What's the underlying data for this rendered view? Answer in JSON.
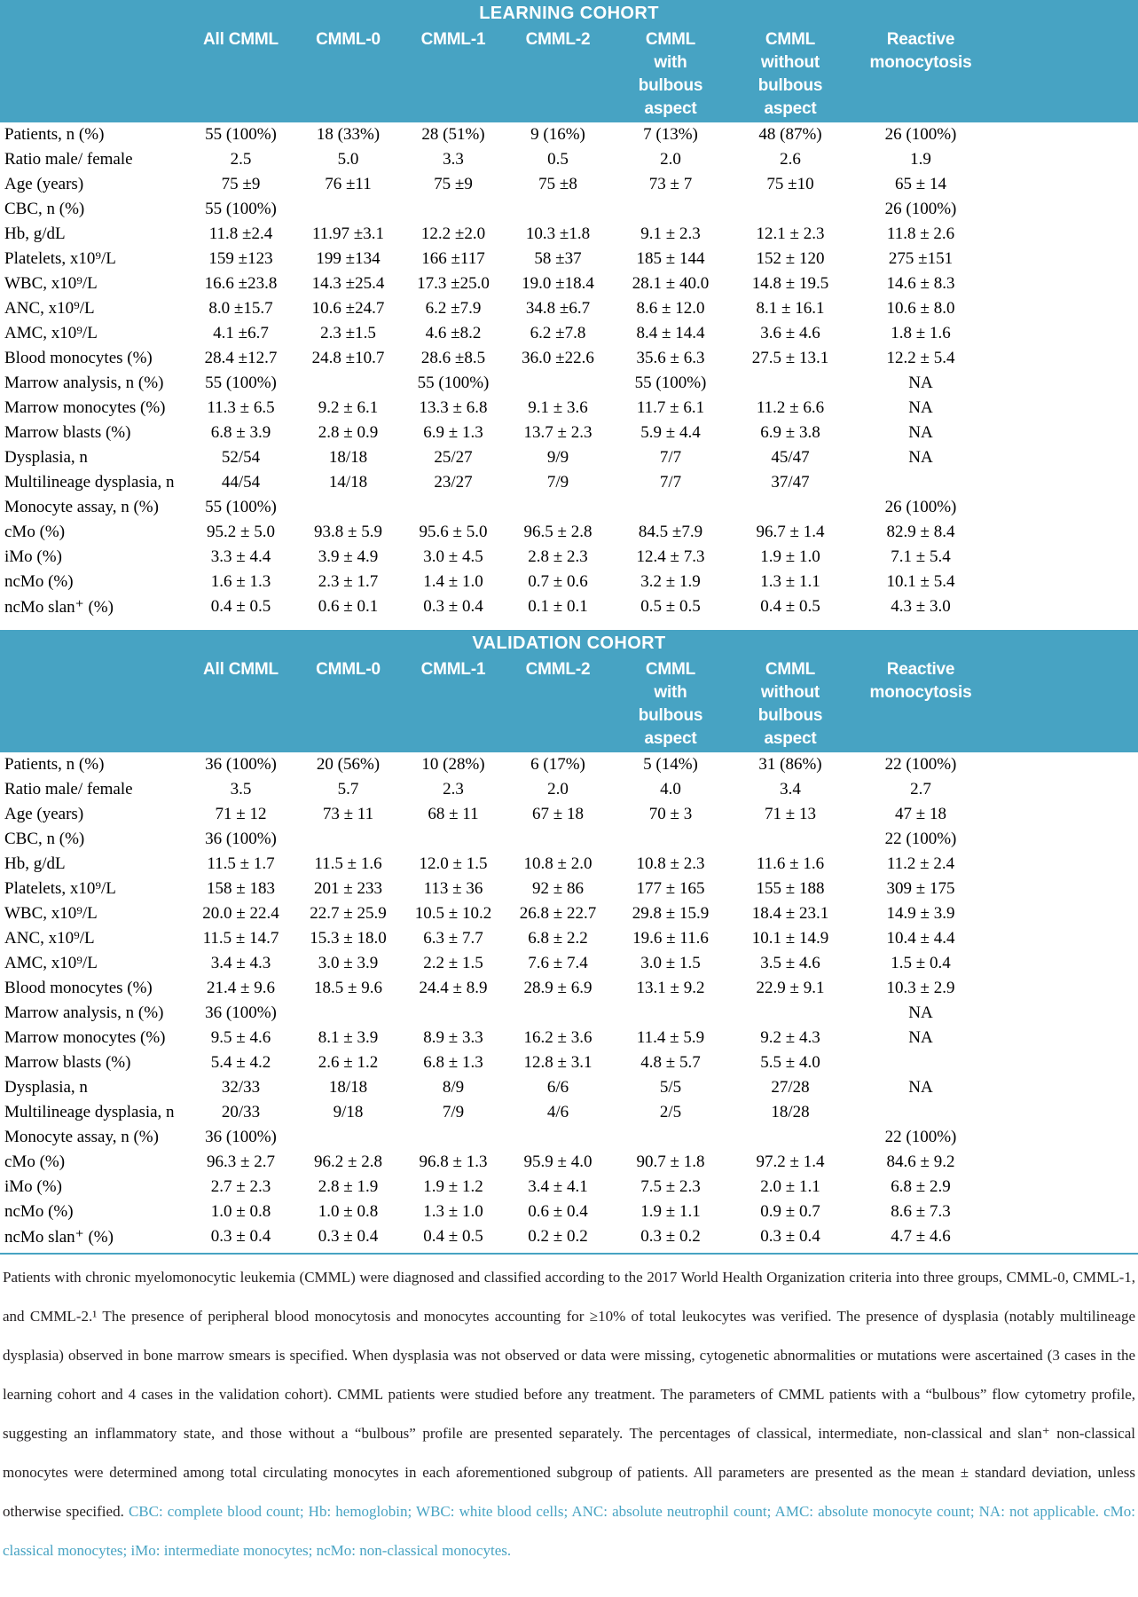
{
  "colors": {
    "accent": "#47a3c3",
    "header_text": "#ffffff",
    "body_text": "#000000",
    "footnote_text": "#231f20"
  },
  "columns": [
    "All CMML",
    "CMML-0",
    "CMML-1",
    "CMML-2",
    "CMML\nwith\nbulbous\naspect",
    "CMML\nwithout\nbulbous\naspect",
    "Reactive\nmonocytosis"
  ],
  "sections": [
    {
      "title": "LEARNING COHORT",
      "rows": [
        {
          "label": "Patients, n (%)",
          "values": [
            "55 (100%)",
            "18 (33%)",
            "28 (51%)",
            "9 (16%)",
            "7 (13%)",
            "48 (87%)",
            "26 (100%)"
          ]
        },
        {
          "label": "Ratio male/ female",
          "values": [
            "2.5",
            "5.0",
            "3.3",
            "0.5",
            "2.0",
            "2.6",
            "1.9"
          ]
        },
        {
          "label": "Age (years)",
          "values": [
            "75 ±9",
            "76 ±11",
            "75 ±9",
            "75 ±8",
            "73 ± 7",
            "75 ±10",
            "65 ± 14"
          ]
        },
        {
          "label": "CBC, n (%)",
          "values": [
            "55 (100%)",
            "",
            "",
            "",
            "",
            "",
            "26 (100%)"
          ]
        },
        {
          "label": "Hb, g/dL",
          "values": [
            "11.8 ±2.4",
            "11.97 ±3.1",
            "12.2 ±2.0",
            "10.3 ±1.8",
            "9.1 ± 2.3",
            "12.1 ± 2.3",
            "11.8 ± 2.6"
          ]
        },
        {
          "label": "Platelets, x10⁹/L",
          "values": [
            "159 ±123",
            "199 ±134",
            "166 ±117",
            "58 ±37",
            "185 ± 144",
            "152 ± 120",
            "275 ±151"
          ]
        },
        {
          "label": "WBC, x10⁹/L",
          "values": [
            "16.6 ±23.8",
            "14.3 ±25.4",
            "17.3 ±25.0",
            "19.0 ±18.4",
            "28.1 ± 40.0",
            "14.8 ± 19.5",
            "14.6 ± 8.3"
          ]
        },
        {
          "label": "ANC, x10⁹/L",
          "values": [
            "8.0 ±15.7",
            "10.6 ±24.7",
            "6.2 ±7.9",
            "34.8 ±6.7",
            "8.6 ± 12.0",
            "8.1 ± 16.1",
            "10.6 ± 8.0"
          ]
        },
        {
          "label": "AMC, x10⁹/L",
          "values": [
            "4.1 ±6.7",
            "2.3 ±1.5",
            "4.6 ±8.2",
            "6.2 ±7.8",
            "8.4 ± 14.4",
            "3.6 ± 4.6",
            "1.8 ± 1.6"
          ]
        },
        {
          "label": "Blood monocytes (%)",
          "values": [
            "28.4 ±12.7",
            "24.8 ±10.7",
            "28.6 ±8.5",
            "36.0 ±22.6",
            "35.6 ± 6.3",
            "27.5 ± 13.1",
            "12.2 ± 5.4"
          ]
        },
        {
          "label": "Marrow analysis, n (%)",
          "values": [
            "55 (100%)",
            "",
            "55 (100%)",
            "",
            "55 (100%)",
            "",
            "NA"
          ]
        },
        {
          "label": "Marrow monocytes (%)",
          "values": [
            "11.3 ± 6.5",
            "9.2 ± 6.1",
            "13.3 ± 6.8",
            "9.1 ± 3.6",
            "11.7 ± 6.1",
            "11.2 ± 6.6",
            "NA"
          ]
        },
        {
          "label": "Marrow blasts (%)",
          "values": [
            "6.8 ± 3.9",
            "2.8 ± 0.9",
            "6.9 ± 1.3",
            "13.7 ± 2.3",
            "5.9 ± 4.4",
            "6.9 ± 3.8",
            "NA"
          ]
        },
        {
          "label": "Dysplasia, n",
          "values": [
            "52/54",
            "18/18",
            "25/27",
            "9/9",
            "7/7",
            "45/47",
            "NA"
          ]
        },
        {
          "label": "Multilineage dysplasia, n",
          "values": [
            "44/54",
            "14/18",
            "23/27",
            "7/9",
            "7/7",
            "37/47",
            ""
          ]
        },
        {
          "label": "Monocyte assay, n (%)",
          "values": [
            "55 (100%)",
            "",
            "",
            "",
            "",
            "",
            "26 (100%)"
          ]
        },
        {
          "label": "cMo (%)",
          "values": [
            "95.2 ± 5.0",
            "93.8 ± 5.9",
            "95.6 ± 5.0",
            "96.5 ± 2.8",
            "84.5 ±7.9",
            "96.7 ± 1.4",
            "82.9 ± 8.4"
          ]
        },
        {
          "label": "iMo (%)",
          "values": [
            "3.3 ± 4.4",
            "3.9 ± 4.9",
            "3.0 ± 4.5",
            "2.8 ± 2.3",
            "12.4 ± 7.3",
            "1.9 ± 1.0",
            "7.1 ± 5.4"
          ]
        },
        {
          "label": "ncMo (%)",
          "values": [
            "1.6 ± 1.3",
            "2.3 ± 1.7",
            "1.4 ± 1.0",
            "0.7 ± 0.6",
            "3.2 ± 1.9",
            "1.3 ± 1.1",
            "10.1 ± 5.4"
          ]
        },
        {
          "label": "ncMo slan⁺ (%)",
          "values": [
            "0.4 ± 0.5",
            "0.6 ± 0.1",
            "0.3 ± 0.4",
            "0.1 ± 0.1",
            "0.5 ± 0.5",
            "0.4 ± 0.5",
            "4.3 ± 3.0"
          ]
        }
      ]
    },
    {
      "title": "VALIDATION COHORT",
      "rows": [
        {
          "label": "Patients, n (%)",
          "values": [
            "36 (100%)",
            "20 (56%)",
            "10 (28%)",
            "6 (17%)",
            "5 (14%)",
            "31 (86%)",
            "22 (100%)"
          ]
        },
        {
          "label": "Ratio male/ female",
          "values": [
            "3.5",
            "5.7",
            "2.3",
            "2.0",
            "4.0",
            "3.4",
            "2.7"
          ]
        },
        {
          "label": "Age (years)",
          "values": [
            "71 ± 12",
            "73 ± 11",
            "68 ± 11",
            "67 ± 18",
            "70 ± 3",
            "71 ± 13",
            "47 ± 18"
          ]
        },
        {
          "label": "CBC, n (%)",
          "values": [
            "36 (100%)",
            "",
            "",
            "",
            "",
            "",
            "22 (100%)"
          ]
        },
        {
          "label": "Hb, g/dL",
          "values": [
            "11.5 ± 1.7",
            "11.5 ± 1.6",
            "12.0 ± 1.5",
            "10.8 ± 2.0",
            "10.8 ± 2.3",
            "11.6 ± 1.6",
            "11.2 ± 2.4"
          ]
        },
        {
          "label": "Platelets, x10⁹/L",
          "values": [
            "158 ± 183",
            "201 ± 233",
            "113 ± 36",
            "92 ± 86",
            "177 ± 165",
            "155 ± 188",
            "309 ± 175"
          ]
        },
        {
          "label": "WBC, x10⁹/L",
          "values": [
            "20.0 ± 22.4",
            "22.7 ± 25.9",
            "10.5 ± 10.2",
            "26.8 ± 22.7",
            "29.8 ± 15.9",
            "18.4 ± 23.1",
            "14.9 ± 3.9"
          ]
        },
        {
          "label": "ANC, x10⁹/L",
          "values": [
            "11.5 ± 14.7",
            "15.3 ± 18.0",
            "6.3 ± 7.7",
            "6.8 ± 2.2",
            "19.6 ± 11.6",
            "10.1 ± 14.9",
            "10.4 ± 4.4"
          ]
        },
        {
          "label": "AMC, x10⁹/L",
          "values": [
            "3.4 ± 4.3",
            "3.0 ± 3.9",
            "2.2 ± 1.5",
            "7.6 ± 7.4",
            "3.0 ± 1.5",
            "3.5 ± 4.6",
            "1.5 ± 0.4"
          ]
        },
        {
          "label": "Blood monocytes (%)",
          "values": [
            "21.4 ± 9.6",
            "18.5 ± 9.6",
            "24.4 ± 8.9",
            "28.9 ± 6.9",
            "13.1 ± 9.2",
            "22.9 ± 9.1",
            "10.3 ± 2.9"
          ]
        },
        {
          "label": "Marrow analysis, n (%)",
          "values": [
            "36 (100%)",
            "",
            "",
            "",
            "",
            "",
            "NA"
          ]
        },
        {
          "label": "Marrow monocytes (%)",
          "values": [
            "9.5 ± 4.6",
            "8.1 ± 3.9",
            "8.9 ± 3.3",
            "16.2 ± 3.6",
            "11.4 ± 5.9",
            "9.2 ± 4.3",
            "NA"
          ]
        },
        {
          "label": "Marrow blasts (%)",
          "values": [
            "5.4 ± 4.2",
            "2.6 ± 1.2",
            "6.8 ± 1.3",
            "12.8 ± 3.1",
            "4.8 ± 5.7",
            "5.5 ± 4.0",
            ""
          ]
        },
        {
          "label": "Dysplasia, n",
          "values": [
            "32/33",
            "18/18",
            "8/9",
            "6/6",
            "5/5",
            "27/28",
            "NA"
          ]
        },
        {
          "label": "Multilineage dysplasia, n",
          "values": [
            "20/33",
            "9/18",
            "7/9",
            "4/6",
            "2/5",
            "18/28",
            ""
          ]
        },
        {
          "label": "Monocyte assay, n (%)",
          "values": [
            "36 (100%)",
            "",
            "",
            "",
            "",
            "",
            "22 (100%)"
          ]
        },
        {
          "label": "cMo (%)",
          "values": [
            "96.3 ± 2.7",
            "96.2 ± 2.8",
            "96.8 ± 1.3",
            "95.9 ± 4.0",
            "90.7 ± 1.8",
            "97.2 ± 1.4",
            "84.6 ± 9.2"
          ]
        },
        {
          "label": "iMo (%)",
          "values": [
            "2.7 ± 2.3",
            "2.8 ± 1.9",
            "1.9 ± 1.2",
            "3.4 ± 4.1",
            "7.5 ± 2.3",
            "2.0 ± 1.1",
            "6.8 ± 2.9"
          ]
        },
        {
          "label": "ncMo (%)",
          "values": [
            "1.0 ± 0.8",
            "1.0 ± 0.8",
            "1.3 ± 1.0",
            "0.6 ± 0.4",
            "1.9 ± 1.1",
            "0.9 ± 0.7",
            "8.6 ± 7.3"
          ]
        },
        {
          "label": "ncMo slan⁺ (%)",
          "values": [
            "0.3 ± 0.4",
            "0.3 ± 0.4",
            "0.4 ± 0.5",
            "0.2 ± 0.2",
            "0.3 ± 0.2",
            "0.3 ± 0.4",
            "4.7 ± 4.6"
          ]
        }
      ]
    }
  ],
  "footnote": {
    "main": "Patients with chronic myelomonocytic leukemia (CMML) were diagnosed and classified according to the 2017 World Health Organization criteria into three groups, CMML-0, CMML-1, and CMML-2.¹ The presence of peripheral blood monocytosis and monocytes accounting for ≥10% of total leukocytes was verified. The presence of dysplasia (notably multilineage dysplasia) observed in bone marrow smears is specified. When dysplasia was not observed or data were missing, cytogenetic abnormalities or mutations were ascertained (3 cases in the learning cohort and 4 cases in the validation cohort). CMML patients were studied before any treatment. The parameters of CMML patients with a “bulbous” flow cytometry profile, suggesting an inflammatory state, and those without a “bulbous” profile are presented separately. The percentages of classical, intermediate, non-classical and slan⁺ non-classical monocytes were determined among total circulating monocytes in each aforementioned subgroup of patients. All parameters are presented as the mean ± standard deviation, unless otherwise specified. ",
    "abbreviations": "CBC: complete blood count; Hb: hemoglobin; WBC: white blood cells; ANC: absolute neutrophil count; AMC: absolute monocyte count; NA: not applicable. cMo: classical monocytes; iMo: intermediate monocytes; ncMo: non-classical monocytes."
  }
}
